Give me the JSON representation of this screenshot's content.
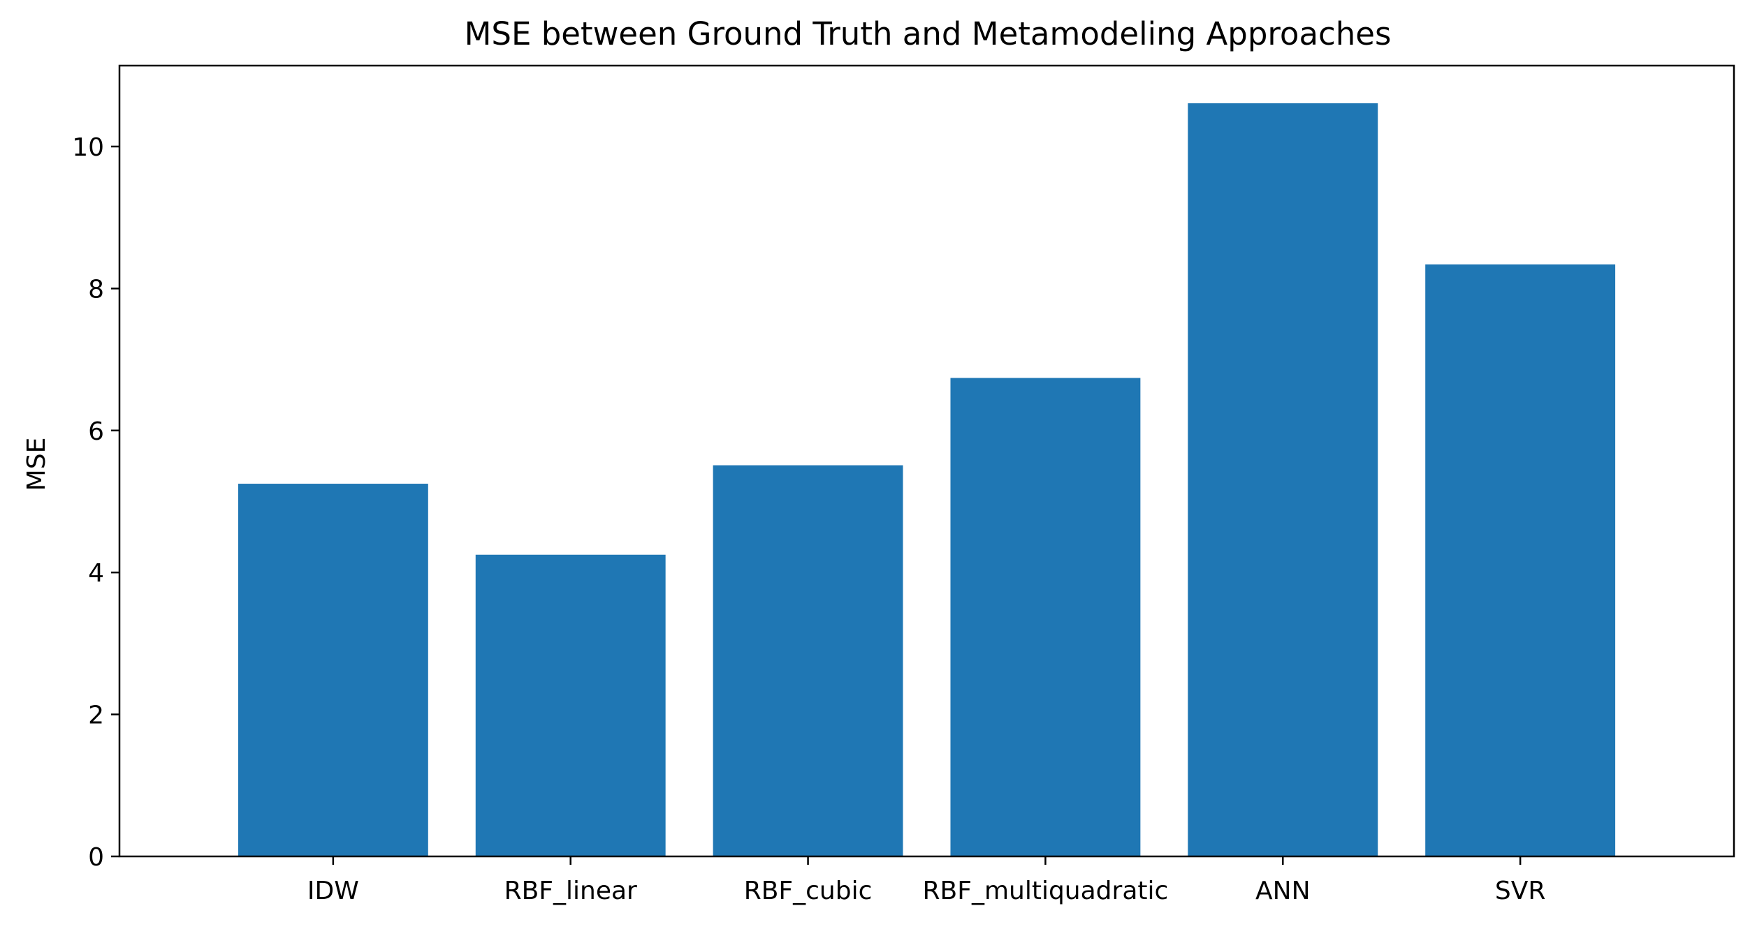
{
  "chart_data": {
    "type": "bar",
    "title": "MSE between Ground Truth and Metamodeling Approaches",
    "xlabel": "",
    "ylabel": "MSE",
    "categories": [
      "IDW",
      "RBF_linear",
      "RBF_cubic",
      "RBF_multiquadratic",
      "ANN",
      "SVR"
    ],
    "values": [
      5.25,
      4.25,
      5.51,
      6.74,
      10.61,
      8.34
    ],
    "ylim": [
      0,
      11.14
    ],
    "yticks": [
      0,
      2,
      4,
      6,
      8,
      10
    ],
    "grid": false,
    "bar_color": "#1f77b4"
  }
}
